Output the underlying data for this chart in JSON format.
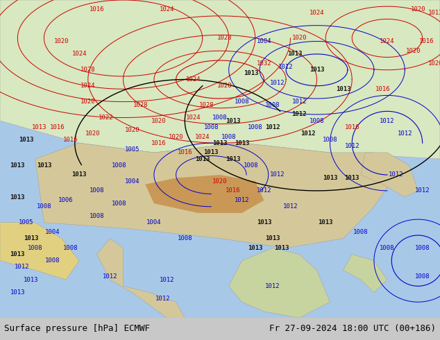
{
  "title_left": "Surface pressure [hPa] ECMWF",
  "title_right": "Fr 27-09-2024 18:00 UTC (00+186)",
  "bg_color": "#ffffff",
  "label_color_black": "#000000",
  "label_color_red": "#cc0000",
  "label_color_blue": "#0000cc",
  "bottom_bar_color": "#d0d0d0",
  "font_size_bottom": 9,
  "fig_width": 6.34,
  "fig_height": 4.9,
  "dpi": 100,
  "map_bg_ocean": "#b0d0f0",
  "map_bg_land_low": "#e8dfc0",
  "map_bg_land_high": "#c8b870"
}
